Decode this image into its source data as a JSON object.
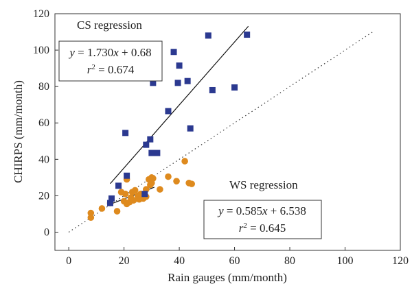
{
  "chart_data": {
    "type": "scatter",
    "xlabel": "Rain gauges (mm/month)",
    "ylabel": "CHIRPS (mm/month)",
    "xlim": [
      -5,
      120
    ],
    "ylim": [
      -10,
      120
    ],
    "xticks": [
      0,
      20,
      40,
      60,
      80,
      100,
      120
    ],
    "yticks": [
      0,
      20,
      40,
      60,
      80,
      100,
      120
    ],
    "grid": false,
    "series": [
      {
        "marker": "square",
        "color": "#2B3990",
        "points": [
          [
            15,
            16
          ],
          [
            15.5,
            18.5
          ],
          [
            18,
            25.5
          ],
          [
            20.5,
            54.5
          ],
          [
            21,
            31
          ],
          [
            27.5,
            21
          ],
          [
            28,
            48
          ],
          [
            29.5,
            51
          ],
          [
            30,
            43.5
          ],
          [
            30.5,
            82
          ],
          [
            32,
            43.5
          ],
          [
            36,
            66.5
          ],
          [
            38,
            99
          ],
          [
            39.5,
            82
          ],
          [
            40,
            91.5
          ],
          [
            43,
            83
          ],
          [
            44,
            57
          ],
          [
            50.5,
            108
          ],
          [
            52,
            78
          ],
          [
            60,
            79.5
          ],
          [
            64.5,
            108.5
          ]
        ]
      },
      {
        "marker": "circle",
        "color": "#DE8A1E",
        "points": [
          [
            8,
            8
          ],
          [
            8,
            10.5
          ],
          [
            12,
            13
          ],
          [
            15,
            16
          ],
          [
            17.5,
            11.5
          ],
          [
            19,
            22
          ],
          [
            20,
            17
          ],
          [
            20.5,
            21
          ],
          [
            21,
            15.5
          ],
          [
            21,
            29
          ],
          [
            22,
            16.5
          ],
          [
            22.5,
            19
          ],
          [
            23,
            22
          ],
          [
            23.5,
            17.5
          ],
          [
            24,
            23
          ],
          [
            25,
            20
          ],
          [
            25.5,
            18
          ],
          [
            26,
            21
          ],
          [
            27,
            18.5
          ],
          [
            28,
            19.5
          ],
          [
            28,
            23.5
          ],
          [
            29,
            29
          ],
          [
            29.5,
            26
          ],
          [
            30,
            27
          ],
          [
            30,
            30
          ],
          [
            30.5,
            29.5
          ],
          [
            33,
            23.5
          ],
          [
            36,
            30.5
          ],
          [
            39,
            28
          ],
          [
            42,
            39
          ],
          [
            43.5,
            27
          ],
          [
            44.5,
            26.5
          ]
        ]
      }
    ],
    "reference_line": {
      "style": "dotted",
      "from": [
        0,
        0
      ],
      "to": [
        110,
        110
      ]
    },
    "regression_lines": [
      {
        "name": "CS regression",
        "from": [
          15,
          26.63
        ],
        "to": [
          65,
          113.13
        ]
      },
      {
        "name": "WS regression",
        "from": [
          15,
          15.31
        ],
        "to": [
          31,
          24.67
        ]
      }
    ],
    "annotations": {
      "cs_label": "CS regression",
      "cs_eq_lhs": "y",
      "cs_eq_eq": " = 1.730",
      "cs_eq_x": "x",
      "cs_eq_tail": " + 0.68",
      "cs_r_base": "r",
      "cs_r_sup": "2",
      "cs_r_val": " = 0.674",
      "ws_label": "WS regression",
      "ws_eq_lhs": "y",
      "ws_eq_eq": " = 0.585",
      "ws_eq_x": "x",
      "ws_eq_tail": " + 6.538",
      "ws_r_base": "r",
      "ws_r_sup": "2",
      "ws_r_val": " = 0.645"
    }
  }
}
